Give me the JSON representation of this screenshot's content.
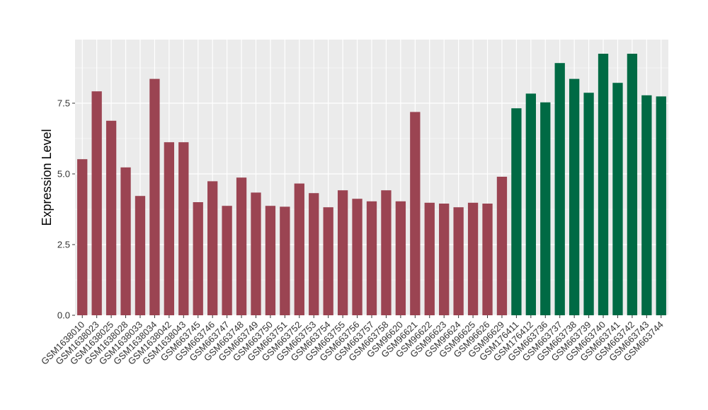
{
  "chart_data": {
    "type": "bar",
    "ylabel": "Expression Level",
    "xlabel": "",
    "title": "",
    "ylim": [
      0,
      9.75
    ],
    "yticks": [
      0.0,
      2.5,
      5.0,
      7.5
    ],
    "ytick_labels": [
      "0.0",
      "2.5",
      "5.0",
      "7.5"
    ],
    "grid": true,
    "legend": "none",
    "colors": {
      "group_a": "#9b4452",
      "group_b": "#006a44",
      "panel": "#ebebeb",
      "grid": "#ffffff"
    },
    "categories": [
      "GSM1638010",
      "GSM1638023",
      "GSM1638025",
      "GSM1638028",
      "GSM1638033",
      "GSM1638034",
      "GSM1638042",
      "GSM1638043",
      "GSM663745",
      "GSM663746",
      "GSM663747",
      "GSM663748",
      "GSM663749",
      "GSM663750",
      "GSM663751",
      "GSM663752",
      "GSM663753",
      "GSM663754",
      "GSM663755",
      "GSM663756",
      "GSM663757",
      "GSM663758",
      "GSM96620",
      "GSM96621",
      "GSM96622",
      "GSM96623",
      "GSM96624",
      "GSM96625",
      "GSM96626",
      "GSM96629",
      "GSM176411",
      "GSM176412",
      "GSM663736",
      "GSM663737",
      "GSM663738",
      "GSM663739",
      "GSM663740",
      "GSM663741",
      "GSM663742",
      "GSM663743",
      "GSM663744"
    ],
    "values": [
      5.52,
      7.92,
      6.88,
      5.23,
      4.22,
      8.36,
      6.12,
      6.12,
      4.0,
      4.74,
      3.87,
      4.87,
      4.34,
      3.87,
      3.84,
      4.66,
      4.32,
      3.82,
      4.42,
      4.12,
      4.03,
      4.42,
      4.03,
      7.19,
      3.98,
      3.95,
      3.82,
      3.98,
      3.95,
      4.9,
      7.32,
      7.84,
      7.53,
      8.92,
      8.36,
      7.87,
      9.25,
      8.22,
      9.25,
      7.78,
      7.74
    ],
    "groups": [
      "a",
      "a",
      "a",
      "a",
      "a",
      "a",
      "a",
      "a",
      "a",
      "a",
      "a",
      "a",
      "a",
      "a",
      "a",
      "a",
      "a",
      "a",
      "a",
      "a",
      "a",
      "a",
      "a",
      "a",
      "a",
      "a",
      "a",
      "a",
      "a",
      "a",
      "b",
      "b",
      "b",
      "b",
      "b",
      "b",
      "b",
      "b",
      "b",
      "b",
      "b"
    ]
  }
}
